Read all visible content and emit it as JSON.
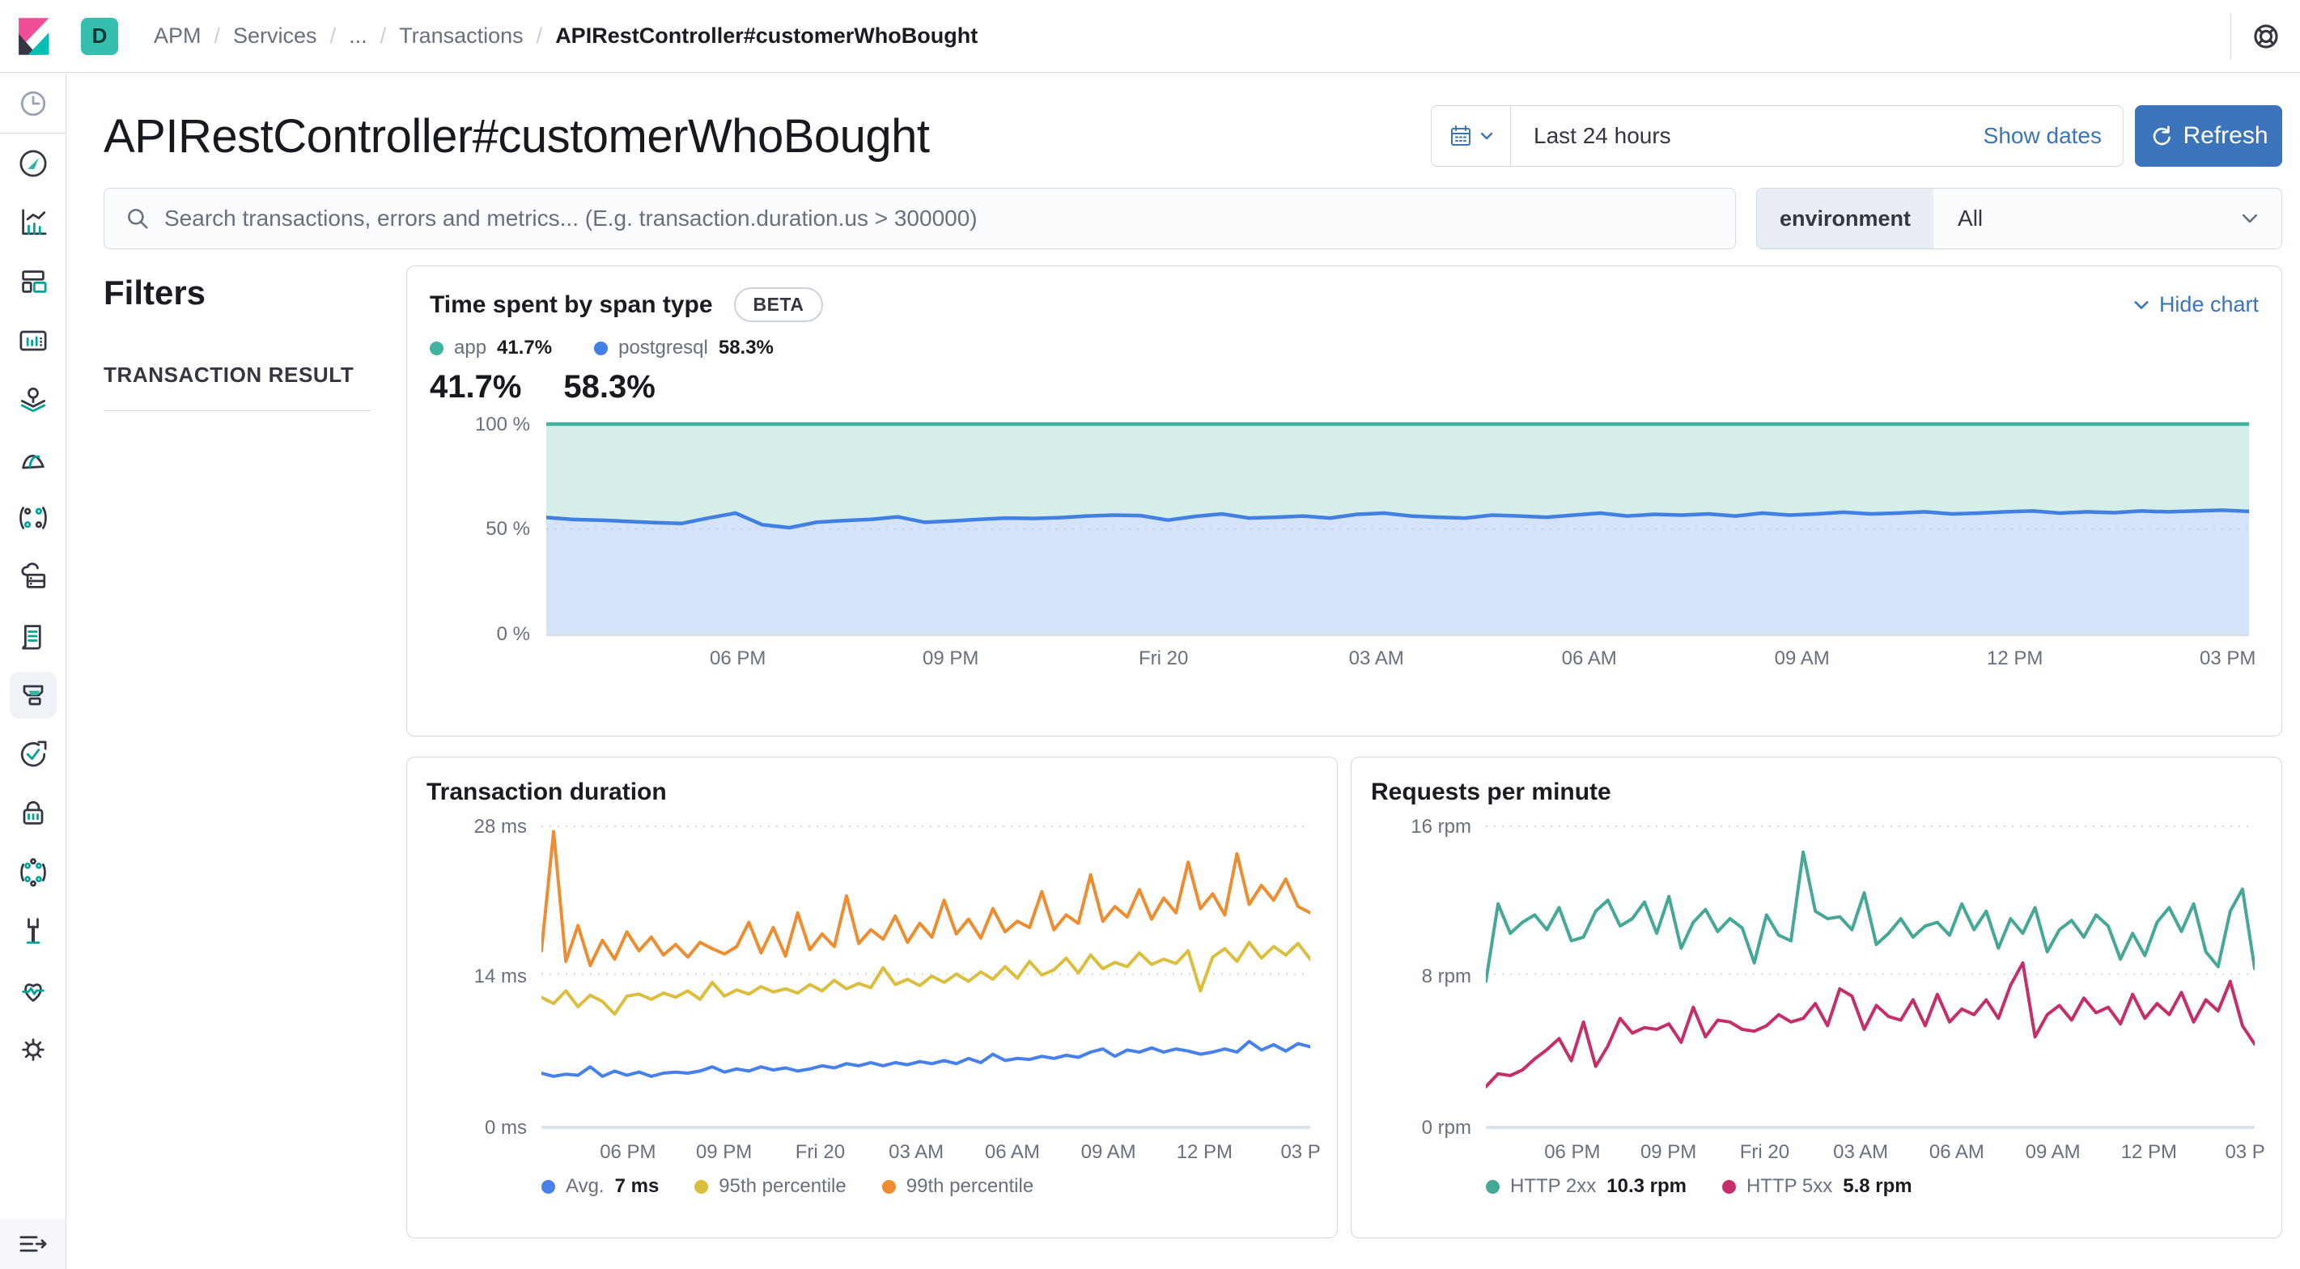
{
  "header": {
    "space_badge": "D",
    "breadcrumbs": [
      "APM",
      "Services",
      "...",
      "Transactions",
      "APIRestController#customerWhoBought"
    ]
  },
  "sidebar": {
    "items": [
      "recently-viewed",
      "discover",
      "visualize",
      "dashboard",
      "canvas",
      "maps",
      "machine-learning",
      "graph",
      "infrastructure",
      "logs",
      "apm",
      "uptime",
      "siem",
      "code",
      "dev-tools",
      "stack-monitoring",
      "management"
    ],
    "active_item": "apm"
  },
  "page": {
    "title": "APIRestController#customerWhoBought"
  },
  "datepicker": {
    "value": "Last 24 hours",
    "show_dates": "Show dates",
    "refresh_label": "Refresh"
  },
  "search": {
    "placeholder": "Search transactions, errors and metrics... (E.g. transaction.duration.us > 300000)"
  },
  "environment": {
    "label": "environment",
    "value": "All"
  },
  "filters": {
    "title": "Filters",
    "section": "TRANSACTION RESULT"
  },
  "colors": {
    "accent": "#3B74BA",
    "teal_brand": "#36BFAE",
    "panel_border": "#D3DAE6",
    "text": "#343741",
    "text_subdued": "#69707D"
  },
  "chart_data": [
    {
      "type": "area",
      "stacked": true,
      "title": "Time spent by span type",
      "badge": "BETA",
      "hide_chart_label": "Hide chart",
      "ylim": [
        0,
        100
      ],
      "y_ticks": [
        "100 %",
        "50 %",
        "0 %"
      ],
      "x_ticks": [
        "06 PM",
        "09 PM",
        "Fri 20",
        "03 AM",
        "06 AM",
        "09 AM",
        "12 PM",
        "03 PM"
      ],
      "legend": [
        {
          "label": "app",
          "value": "41.7%",
          "color": "#3FB3A0"
        },
        {
          "label": "postgresql",
          "value": "58.3%",
          "color": "#4180E2"
        }
      ],
      "series": [
        {
          "name": "postgresql",
          "unit": "%",
          "color": "#4180E2",
          "fill": "rgba(65,128,226,0.22)",
          "values": [
            55.5,
            54.5,
            54.2,
            53.6,
            53.0,
            52.6,
            55.2,
            57.6,
            52.0,
            50.6,
            53.2,
            54.0,
            54.6,
            55.8,
            53.2,
            53.8,
            54.6,
            55.2,
            55.0,
            55.4,
            56.2,
            56.6,
            56.4,
            54.2,
            56.0,
            57.2,
            55.2,
            55.6,
            56.2,
            55.2,
            57.0,
            57.6,
            56.2,
            55.6,
            55.2,
            56.6,
            56.2,
            55.6,
            56.6,
            57.6,
            56.2,
            57.0,
            56.6,
            57.2,
            56.2,
            57.6,
            56.6,
            57.2,
            58.0,
            57.2,
            57.6,
            58.2,
            57.2,
            57.6,
            58.2,
            58.6,
            57.6,
            58.2,
            57.8,
            58.6,
            58.2,
            58.6,
            59.0,
            58.4
          ]
        },
        {
          "name": "app",
          "unit": "%",
          "color": "#3FB3A0",
          "fill": "rgba(63,179,160,0.22)",
          "stacks_to": 100
        }
      ]
    },
    {
      "type": "line",
      "title": "Transaction duration",
      "unit": "ms",
      "ylim": [
        0,
        28
      ],
      "y_ticks": [
        "28 ms",
        "14 ms",
        "0 ms"
      ],
      "x_ticks": [
        "06 PM",
        "09 PM",
        "Fri 20",
        "03 AM",
        "06 AM",
        "09 AM",
        "12 PM",
        "03 P"
      ],
      "legend": [
        {
          "label": "Avg.",
          "value": "7 ms",
          "color": "#4680E8"
        },
        {
          "label": "95th percentile",
          "color": "#DCBE3E"
        },
        {
          "label": "99th percentile",
          "color": "#EE8C30"
        }
      ],
      "series": [
        {
          "name": "Avg.",
          "color": "#4680E8",
          "values": [
            4.6,
            4.3,
            4.5,
            4.4,
            5.2,
            4.3,
            4.8,
            4.4,
            4.7,
            4.3,
            4.6,
            4.7,
            4.6,
            4.8,
            5.2,
            4.7,
            5.0,
            4.8,
            5.2,
            4.9,
            5.1,
            4.8,
            5.0,
            5.3,
            5.1,
            5.5,
            5.3,
            5.6,
            5.3,
            5.6,
            5.4,
            5.7,
            5.5,
            5.8,
            5.5,
            6.0,
            5.6,
            6.4,
            5.8,
            6.0,
            5.9,
            6.2,
            6.0,
            6.3,
            6.1,
            6.6,
            6.9,
            6.2,
            6.8,
            6.6,
            7.0,
            6.6,
            6.9,
            6.7,
            6.4,
            6.6,
            6.9,
            6.6,
            7.6,
            6.8,
            7.3,
            6.7,
            7.4,
            7.1
          ]
        },
        {
          "name": "95th percentile",
          "color": "#DCBE3E",
          "values": [
            11.8,
            11.2,
            12.4,
            10.9,
            12.0,
            11.4,
            10.2,
            11.9,
            12.1,
            11.6,
            12.2,
            11.8,
            12.4,
            11.6,
            13.2,
            11.9,
            12.5,
            12.1,
            12.8,
            12.3,
            12.6,
            12.2,
            13.0,
            12.4,
            13.4,
            12.6,
            13.1,
            12.7,
            14.6,
            13.0,
            13.5,
            12.9,
            13.8,
            13.2,
            14.0,
            13.3,
            14.2,
            13.5,
            14.7,
            13.6,
            15.2,
            13.9,
            14.4,
            15.5,
            14.1,
            15.8,
            14.5,
            15.1,
            14.7,
            16.0,
            14.9,
            15.4,
            15.0,
            16.2,
            12.4,
            15.6,
            16.4,
            15.2,
            17.0,
            15.5,
            16.6,
            15.8,
            16.9,
            15.4
          ]
        },
        {
          "name": "99th percentile",
          "color": "#EE8C30",
          "values": [
            16.2,
            27.5,
            15.2,
            18.6,
            14.8,
            17.2,
            15.4,
            18.0,
            16.2,
            17.5,
            15.8,
            16.8,
            15.6,
            17.0,
            16.4,
            15.9,
            16.6,
            18.9,
            16.0,
            18.4,
            15.7,
            19.8,
            16.3,
            17.8,
            16.6,
            21.4,
            16.9,
            18.2,
            17.3,
            19.5,
            17.0,
            18.8,
            17.5,
            21.0,
            17.8,
            19.2,
            17.4,
            20.2,
            18.0,
            19.0,
            18.4,
            21.8,
            18.2,
            19.6,
            18.8,
            23.4,
            19.0,
            20.4,
            19.4,
            22.0,
            19.2,
            21.2,
            19.8,
            24.6,
            20.2,
            21.6,
            19.6,
            25.4,
            20.6,
            22.4,
            21.0,
            23.0,
            20.4,
            19.8
          ]
        }
      ]
    },
    {
      "type": "line",
      "title": "Requests per minute",
      "unit": "rpm",
      "ylim": [
        0,
        16
      ],
      "y_ticks": [
        "16 rpm",
        "8 rpm",
        "0 rpm"
      ],
      "x_ticks": [
        "06 PM",
        "09 PM",
        "Fri 20",
        "03 AM",
        "06 AM",
        "09 AM",
        "12 PM",
        "03 P"
      ],
      "legend": [
        {
          "label": "HTTP 2xx",
          "value": "10.3 rpm",
          "color": "#45A897"
        },
        {
          "label": "HTTP 5xx",
          "value": "5.8 rpm",
          "color": "#C62E6B"
        }
      ],
      "series": [
        {
          "name": "HTTP 2xx",
          "color": "#45A897",
          "values": [
            7.6,
            11.8,
            10.2,
            10.8,
            11.2,
            10.4,
            11.6,
            9.8,
            10.0,
            11.4,
            12.0,
            10.6,
            11.0,
            11.9,
            10.2,
            12.2,
            9.4,
            10.8,
            11.5,
            10.3,
            11.0,
            10.5,
            8.6,
            11.2,
            10.1,
            9.8,
            14.6,
            11.4,
            11.0,
            11.1,
            10.4,
            12.4,
            9.6,
            10.2,
            11.0,
            10.0,
            10.6,
            10.8,
            10.1,
            11.8,
            10.4,
            11.4,
            9.4,
            11.0,
            10.2,
            11.6,
            9.2,
            10.4,
            10.9,
            10.0,
            11.2,
            10.6,
            8.8,
            10.2,
            9.0,
            10.8,
            11.6,
            10.3,
            11.8,
            9.2,
            8.4,
            11.4,
            12.6,
            8.3
          ]
        },
        {
          "name": "HTTP 5xx",
          "color": "#C62E6B",
          "values": [
            1.9,
            2.6,
            2.5,
            2.8,
            3.4,
            3.9,
            4.5,
            3.3,
            5.4,
            3.0,
            4.1,
            5.6,
            4.8,
            5.1,
            5.0,
            5.3,
            4.3,
            6.2,
            4.6,
            5.5,
            5.4,
            5.0,
            4.9,
            5.2,
            5.8,
            5.4,
            5.6,
            6.4,
            5.2,
            7.2,
            6.8,
            5.0,
            6.3,
            5.7,
            5.5,
            6.6,
            5.2,
            6.9,
            5.4,
            6.1,
            5.8,
            6.6,
            5.6,
            7.4,
            8.6,
            4.6,
            5.8,
            6.3,
            5.5,
            6.7,
            5.9,
            6.2,
            5.3,
            6.9,
            5.6,
            6.4,
            5.8,
            7.0,
            5.4,
            6.6,
            6.0,
            7.6,
            5.2,
            4.2
          ]
        }
      ]
    }
  ]
}
